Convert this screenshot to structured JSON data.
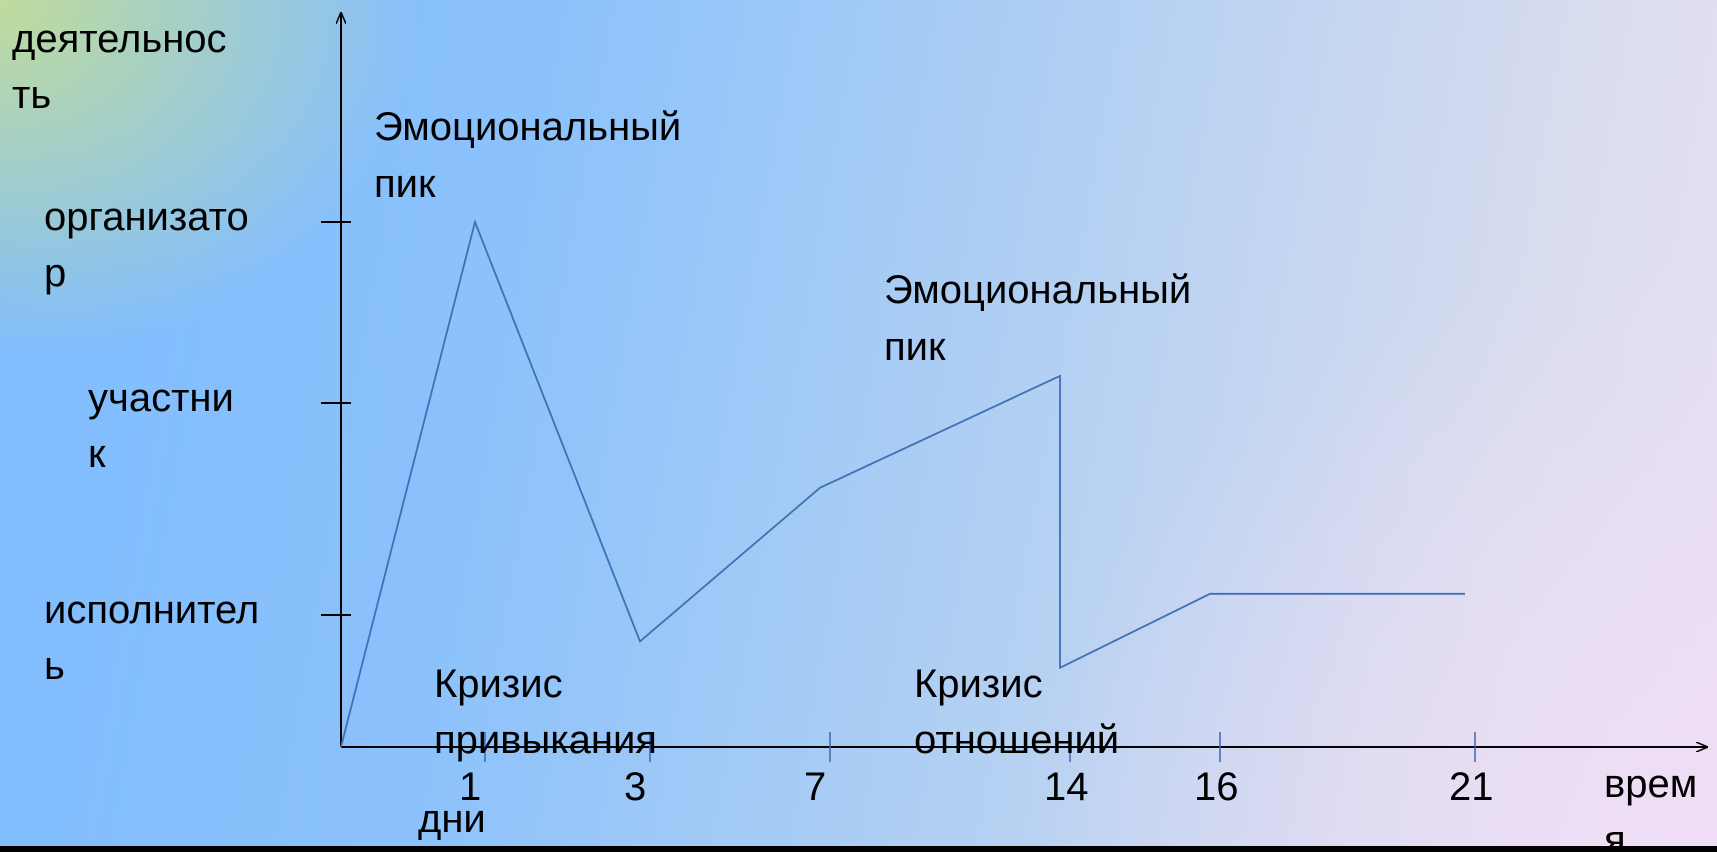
{
  "chart_data": {
    "type": "line",
    "title": "",
    "ylabel": "деятельность",
    "xlabel": "время",
    "x_unit_label": "дни",
    "x_ticks": [
      1,
      3,
      7,
      14,
      16,
      21
    ],
    "y_categories": [
      "исполнитель",
      "участник",
      "организатор"
    ],
    "series": [
      {
        "points": [
          {
            "x": 0,
            "y": 0
          },
          {
            "x": 1,
            "y": 3
          },
          {
            "x": 3,
            "y": 0.8
          },
          {
            "x": 7,
            "y": 1.6
          },
          {
            "x": 14,
            "y": 2.15
          },
          {
            "x": 14,
            "y": 0.6
          },
          {
            "x": 16,
            "y": 1.1
          },
          {
            "x": 21,
            "y": 1.1
          }
        ]
      }
    ],
    "annotations": [
      {
        "text": "Эмоциональный пик",
        "x": 1
      },
      {
        "text": "Эмоциональный пик",
        "x": 14
      },
      {
        "text": "Кризис привыкания",
        "x": 3
      },
      {
        "text": "Кризис отношений",
        "x": 14
      }
    ]
  }
}
